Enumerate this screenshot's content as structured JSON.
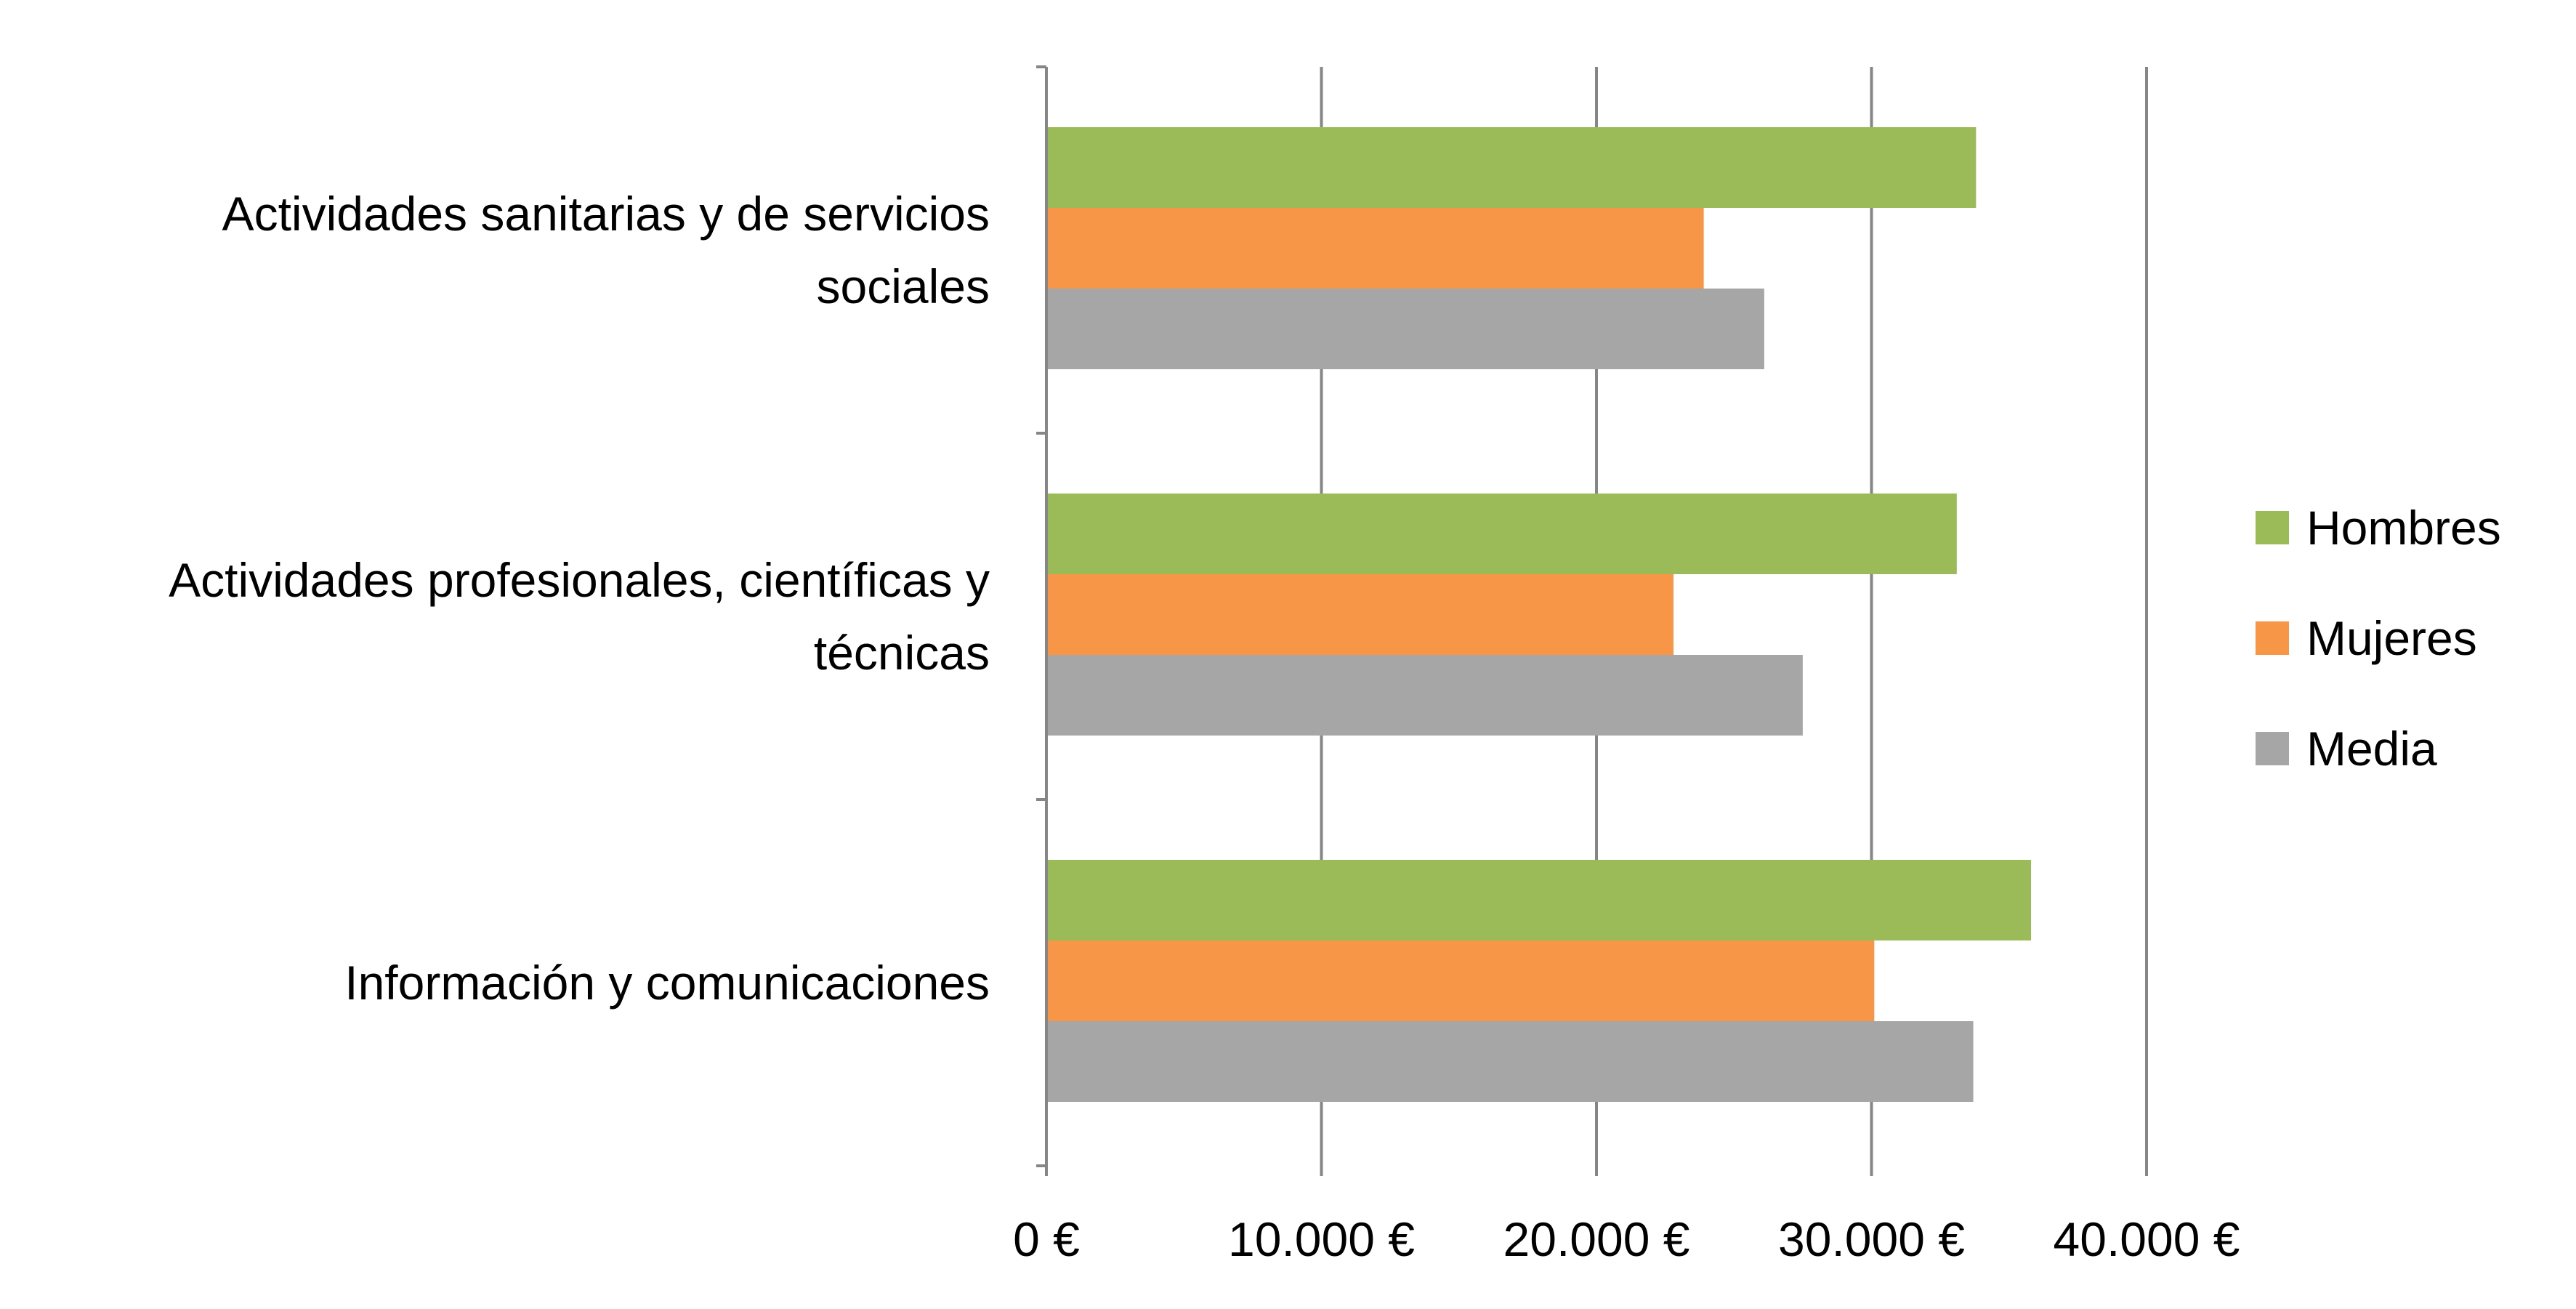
{
  "chart_data": {
    "type": "bar",
    "orientation": "horizontal",
    "title": "",
    "xlabel": "",
    "ylabel": "",
    "categories": [
      [
        "Actividades sanitarias y de servicios",
        "sociales"
      ],
      [
        "Actividades profesionales, científicas y",
        "técnicas"
      ],
      [
        "Información y comunicaciones"
      ]
    ],
    "series": [
      {
        "name": "Hombres",
        "color": "#9BBB59",
        "values": [
          33800,
          33100,
          35800
        ]
      },
      {
        "name": "Mujeres",
        "color": "#F79646",
        "values": [
          23900,
          22800,
          30100
        ]
      },
      {
        "name": "Media",
        "color": "#A6A6A6",
        "values": [
          26100,
          27500,
          33700
        ]
      }
    ],
    "xlim": [
      0,
      40000
    ],
    "xticks": [
      "0 €",
      "10.000 €",
      "20.000 €",
      "30.000 €",
      "40.000 €"
    ],
    "xtick_values": [
      0,
      10000,
      20000,
      30000,
      40000
    ],
    "grid": "vertical",
    "legend_position": "right"
  }
}
